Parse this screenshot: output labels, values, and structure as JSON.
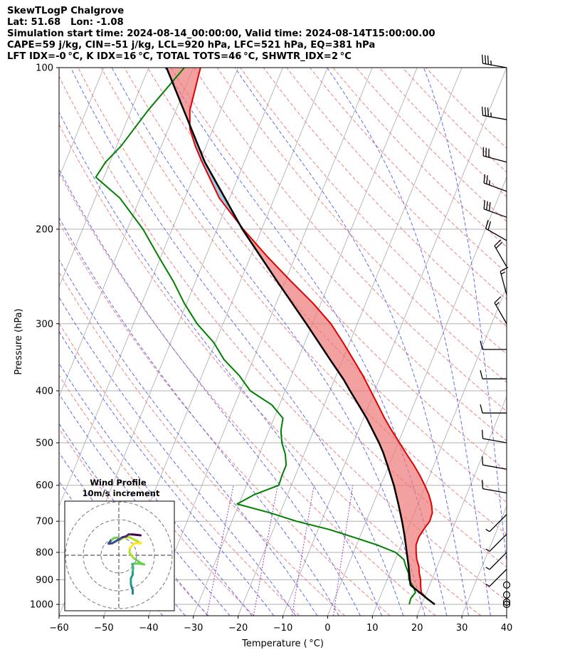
{
  "header": {
    "lines": [
      "SkewTLogP Chalgrove",
      "Lat: 51.68   Lon: -1.08",
      "Simulation start time: 2024-08-14_00:00:00, Valid time: 2024-08-14T15:00:00.00",
      "CAPE=59 j/kg, CIN=-51 j/kg, LCL=920 hPa, LFC=521 hPa, EQ=381 hPa",
      "LFT IDX=-0 °C, K IDX=16 °C, TOTAL TOTS=46 °C, SHWTR_IDX=2 °C"
    ]
  },
  "chart_data": {
    "type": "skewt",
    "xlabel": "Temperature ( °C)",
    "ylabel": "Pressure (hPa)",
    "xlim": [
      -60,
      40
    ],
    "ylim": [
      1050,
      100
    ],
    "xticks": [
      -60,
      -50,
      -40,
      -30,
      -20,
      -10,
      0,
      10,
      20,
      30,
      40
    ],
    "xtick_labels": [
      "−60",
      "−50",
      "−40",
      "−30",
      "−20",
      "−10",
      "0",
      "10",
      "20",
      "30",
      "40"
    ],
    "yticks": [
      1000,
      900,
      800,
      700,
      600,
      500,
      400,
      300,
      200,
      100
    ],
    "ytick_labels": [
      "1000",
      "900",
      "800",
      "700",
      "600",
      "500",
      "400",
      "300",
      "200",
      "100"
    ],
    "temperature": {
      "color": "#e00000",
      "p": [
        1000,
        975,
        950,
        925,
        900,
        875,
        850,
        825,
        800,
        775,
        750,
        725,
        700,
        675,
        650,
        625,
        600,
        575,
        550,
        525,
        500,
        475,
        450,
        425,
        400,
        375,
        350,
        325,
        300,
        275,
        250,
        225,
        200,
        175,
        150,
        140,
        130,
        120,
        110,
        100
      ],
      "t": [
        22.9,
        20.6,
        18.8,
        18.1,
        17.5,
        16.6,
        15.9,
        14.8,
        14.0,
        13.3,
        13.2,
        13.6,
        14.2,
        14.0,
        13.0,
        11.6,
        9.8,
        7.8,
        5.5,
        2.9,
        0.3,
        -2.5,
        -5.3,
        -8.0,
        -10.9,
        -14.0,
        -17.6,
        -21.5,
        -25.9,
        -31.7,
        -38.7,
        -46.2,
        -54.1,
        -62.3,
        -69.4,
        -72.4,
        -75.2,
        -76.9,
        -77.6,
        -78.4
      ]
    },
    "dewpoint": {
      "color": "#008000",
      "p": [
        1000,
        975,
        950,
        925,
        900,
        875,
        850,
        825,
        800,
        775,
        750,
        725,
        700,
        675,
        650,
        625,
        600,
        575,
        550,
        525,
        500,
        475,
        450,
        425,
        400,
        375,
        350,
        325,
        300,
        275,
        250,
        225,
        200,
        175,
        160,
        150,
        140,
        120,
        100
      ],
      "t": [
        17.2,
        17.0,
        17.5,
        16.4,
        14.9,
        14.2,
        13.0,
        11.9,
        9.4,
        4.6,
        -1.3,
        -7.6,
        -15.6,
        -22.3,
        -30.4,
        -27.5,
        -22.8,
        -23.0,
        -23.0,
        -24.2,
        -26.0,
        -27.3,
        -28.0,
        -31.7,
        -37.8,
        -41.6,
        -46.5,
        -50.4,
        -55.8,
        -60.5,
        -65.0,
        -70.5,
        -76.5,
        -84.5,
        -91.8,
        -91.0,
        -89.0,
        -86.2,
        -82.0
      ]
    },
    "parcel": {
      "color": "#000000",
      "p": [
        1000,
        975,
        950,
        925,
        920,
        900,
        850,
        800,
        750,
        700,
        650,
        600,
        550,
        521,
        500,
        450,
        400,
        381,
        350,
        300,
        250,
        200,
        150,
        100
      ],
      "t": [
        22.9,
        20.6,
        18.4,
        16.1,
        15.7,
        15.1,
        13.6,
        11.9,
        10.1,
        8.0,
        5.6,
        2.9,
        -0.4,
        -2.5,
        -4.3,
        -9.3,
        -15.5,
        -18.0,
        -22.8,
        -31.4,
        -41.8,
        -54.3,
        -68.8,
        -86.0
      ]
    },
    "cape_fill_color": "#7fb0d4",
    "cin_fill_color": "#ee7777",
    "wind_barbs": {
      "p": [
        100,
        125,
        150,
        170,
        190,
        210,
        235,
        265,
        300,
        335,
        380,
        440,
        500,
        560,
        620,
        680,
        740,
        800,
        860,
        920,
        960,
        990,
        1000
      ],
      "speed_kt": [
        35,
        35,
        30,
        25,
        30,
        20,
        20,
        15,
        15,
        10,
        10,
        10,
        10,
        10,
        10,
        5,
        5,
        5,
        5,
        0,
        0,
        0,
        0
      ],
      "dir_deg": [
        280,
        280,
        285,
        290,
        290,
        300,
        330,
        345,
        330,
        270,
        270,
        270,
        280,
        280,
        280,
        225,
        225,
        225,
        225,
        0,
        0,
        0,
        0
      ]
    },
    "hodograph": {
      "title": "Wind Profile",
      "subtitle": "10m/s increment",
      "rings": [
        1,
        2,
        3
      ],
      "u": [
        3,
        3,
        2.6,
        2.6,
        3,
        3,
        3.1,
        2.9,
        3.5,
        4.2,
        5.5,
        4.6,
        3.2,
        2.6,
        2.3,
        2.4,
        3.4,
        4.8,
        4.1,
        2.3,
        1.0,
        0.2,
        -0.3,
        -1.1,
        -1.8,
        -2.2,
        -1.4,
        -0.2,
        0.8,
        1.6,
        2.1,
        2.9,
        3.8,
        4.7
      ],
      "v": [
        -8.3,
        -7.5,
        -6.3,
        -5.0,
        -4.2,
        -3.4,
        -2.7,
        -1.9,
        -1.8,
        -1.8,
        -2.0,
        -1.6,
        -0.6,
        0.1,
        0.6,
        1.6,
        2.6,
        2.6,
        3.0,
        3.9,
        3.8,
        3.3,
        3.8,
        3.7,
        3.1,
        2.5,
        2.6,
        3.3,
        3.9,
        4.1,
        4.5,
        4.5,
        4.4,
        4.3
      ]
    }
  }
}
